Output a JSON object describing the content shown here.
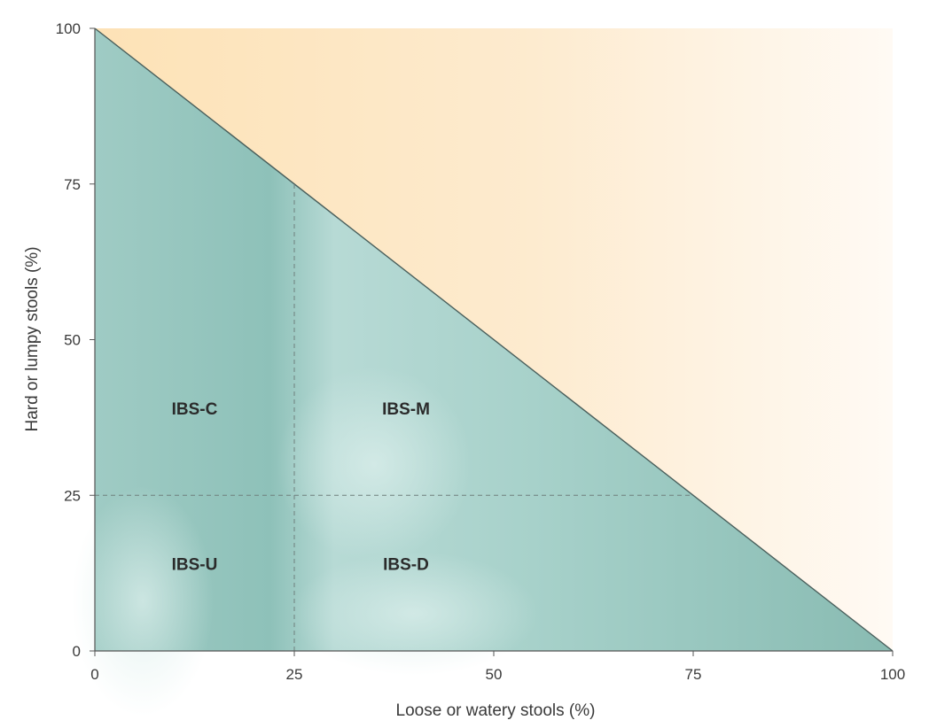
{
  "chart_data": {
    "type": "area",
    "title": "",
    "xlabel": "Loose or watery stools (%)",
    "ylabel": "Hard or lumpy stools (%)",
    "xlim": [
      0,
      100
    ],
    "ylim": [
      0,
      100
    ],
    "x_ticks": [
      0,
      25,
      50,
      75,
      100
    ],
    "y_ticks": [
      0,
      25,
      50,
      75,
      100
    ],
    "x_tick_labels": [
      "0",
      "25",
      "50",
      "75",
      "100"
    ],
    "y_tick_labels": [
      "0",
      "25",
      "50",
      "75",
      "100"
    ],
    "boundary_line": {
      "x": [
        0,
        100
      ],
      "y": [
        100,
        0
      ]
    },
    "threshold_lines": [
      {
        "orientation": "vertical",
        "x": 25,
        "y_range": [
          0,
          75
        ]
      },
      {
        "orientation": "horizontal",
        "y": 25,
        "x_range": [
          0,
          75
        ]
      }
    ],
    "regions": [
      {
        "label": "IBS-C",
        "x": 12.5,
        "y": 38
      },
      {
        "label": "IBS-M",
        "x": 39,
        "y": 38
      },
      {
        "label": "IBS-U",
        "x": 12.5,
        "y": 13
      },
      {
        "label": "IBS-D",
        "x": 39,
        "y": 13
      }
    ],
    "grid": false,
    "legend": "none",
    "colors": {
      "valid_area": "#9ccbc3",
      "invalid_area": "#fde7c4",
      "boundary": "#4a5f5c",
      "axis": "#555555",
      "dashed": "#6f7f7c"
    }
  }
}
